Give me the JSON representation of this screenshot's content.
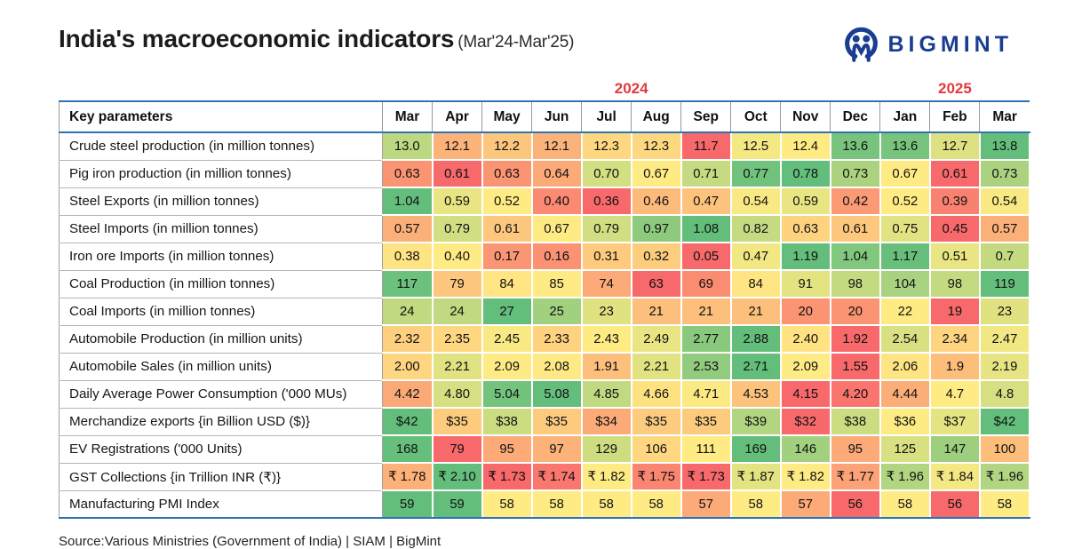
{
  "title": "India's macroeconomic indicators",
  "subtitle": "(Mar'24-Mar'25)",
  "logo": {
    "text": "BIGMINT",
    "color": "#1b3d91"
  },
  "source": "Source:Various Ministries (Government of India)  |  SIAM | BigMint",
  "borders": {
    "accent_blue": "#2e74b5",
    "grid_gray": "#9a9a9a"
  },
  "chart_data": {
    "type": "heatmap",
    "title": "India's macroeconomic indicators (Mar'24-Mar'25)",
    "key_column": "Key parameters",
    "years": [
      {
        "label": "2024",
        "span": 10,
        "color": "#e03b3d"
      },
      {
        "label": "2025",
        "span": 3,
        "color": "#e03b3d"
      }
    ],
    "columns": [
      "Mar",
      "Apr",
      "May",
      "Jun",
      "Jul",
      "Aug",
      "Sep",
      "Oct",
      "Nov",
      "Dec",
      "Jan",
      "Feb",
      "Mar"
    ],
    "colormap": {
      "low": "#F8696B",
      "mid": "#FFEB84",
      "high": "#63BE7B"
    },
    "rows": [
      {
        "label": "Crude steel production (in million tonnes)",
        "values": [
          "13.0",
          "12.1",
          "12.2",
          "12.1",
          "12.3",
          "12.3",
          "11.7",
          "12.5",
          "12.4",
          "13.6",
          "13.6",
          "12.7",
          "13.8"
        ]
      },
      {
        "label": "Pig iron production (in million tonnes)",
        "values": [
          "0.63",
          "0.61",
          "0.63",
          "0.64",
          "0.70",
          "0.67",
          "0.71",
          "0.77",
          "0.78",
          "0.73",
          "0.67",
          "0.61",
          "0.73"
        ]
      },
      {
        "label": "Steel Exports (in million tonnes)",
        "values": [
          "1.04",
          "0.59",
          "0.52",
          "0.40",
          "0.36",
          "0.46",
          "0.47",
          "0.54",
          "0.59",
          "0.42",
          "0.52",
          "0.39",
          "0.54"
        ]
      },
      {
        "label": "Steel Imports (in million tonnes)",
        "values": [
          "0.57",
          "0.79",
          "0.61",
          "0.67",
          "0.79",
          "0.97",
          "1.08",
          "0.82",
          "0.63",
          "0.61",
          "0.75",
          "0.45",
          "0.57"
        ]
      },
      {
        "label": "Iron ore Imports (in million tonnes)",
        "values": [
          "0.38",
          "0.40",
          "0.17",
          "0.16",
          "0.31",
          "0.32",
          "0.05",
          "0.47",
          "1.19",
          "1.04",
          "1.17",
          "0.51",
          "0.7"
        ]
      },
      {
        "label": "Coal Production (in million tonnes)",
        "values": [
          "117",
          "79",
          "84",
          "85",
          "74",
          "63",
          "69",
          "84",
          "91",
          "98",
          "104",
          "98",
          "119"
        ]
      },
      {
        "label": "Coal Imports (in million tonnes)",
        "values": [
          "24",
          "24",
          "27",
          "25",
          "23",
          "21",
          "21",
          "21",
          "20",
          "20",
          "22",
          "19",
          "23"
        ]
      },
      {
        "label": "Automobile Production (in million units)",
        "values": [
          "2.32",
          "2.35",
          "2.45",
          "2.33",
          "2.43",
          "2.49",
          "2.77",
          "2.88",
          "2.40",
          "1.92",
          "2.54",
          "2.34",
          "2.47"
        ]
      },
      {
        "label": "Automobile Sales (in million units)",
        "values": [
          "2.00",
          "2.21",
          "2.09",
          "2.08",
          "1.91",
          "2.21",
          "2.53",
          "2.71",
          "2.09",
          "1.55",
          "2.06",
          "1.9",
          "2.19"
        ]
      },
      {
        "label": "Daily Average Power Consumption ('000 MUs)",
        "values": [
          "4.42",
          "4.80",
          "5.04",
          "5.08",
          "4.85",
          "4.66",
          "4.71",
          "4.53",
          "4.15",
          "4.20",
          "4.44",
          "4.7",
          "4.8"
        ]
      },
      {
        "label": "Merchandize exports {in Billion USD ($)}",
        "values": [
          "$42",
          "$35",
          "$38",
          "$35",
          "$34",
          "$35",
          "$35",
          "$39",
          "$32",
          "$38",
          "$36",
          "$37",
          "$42"
        ]
      },
      {
        "label": "EV Registrations ('000 Units)",
        "values": [
          "168",
          "79",
          "95",
          "97",
          "129",
          "106",
          "111",
          "169",
          "146",
          "95",
          "125",
          "147",
          "100"
        ]
      },
      {
        "label": "GST Collections {in Trillion INR (₹)}",
        "values": [
          "₹ 1.78",
          "₹ 2.10",
          "₹ 1.73",
          "₹ 1.74",
          "₹ 1.82",
          "₹ 1.75",
          "₹ 1.73",
          "₹ 1.87",
          "₹ 1.82",
          "₹ 1.77",
          "₹ 1.96",
          "₹ 1.84",
          "₹ 1.96"
        ]
      },
      {
        "label": "Manufacturing PMI Index",
        "values": [
          "59",
          "59",
          "58",
          "58",
          "58",
          "58",
          "57",
          "58",
          "57",
          "56",
          "58",
          "56",
          "58"
        ]
      }
    ]
  }
}
